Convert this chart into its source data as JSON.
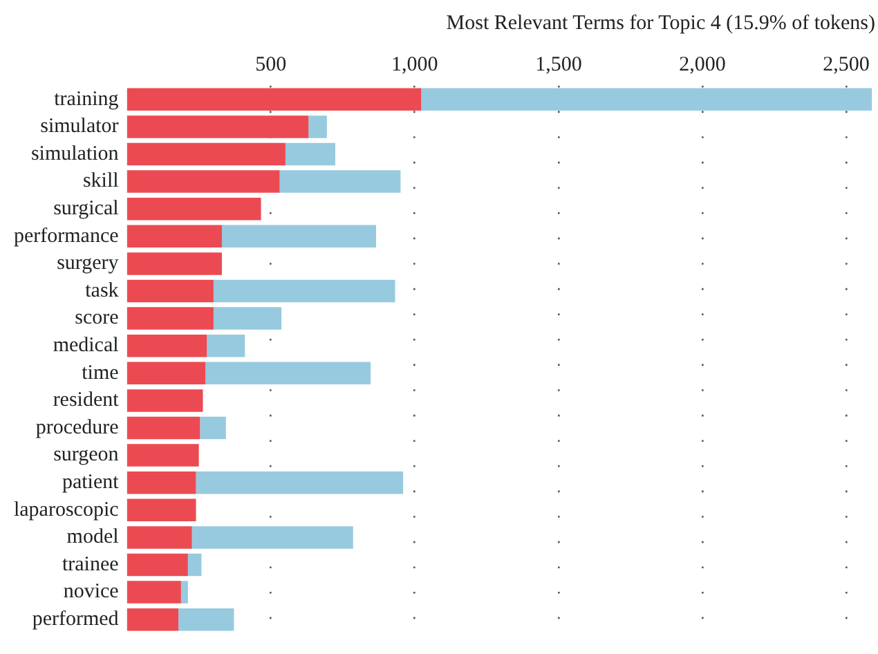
{
  "chart_data": {
    "type": "bar",
    "orientation": "horizontal",
    "title": "Most Relevant Terms for Topic 4 (15.9% of tokens)",
    "categories": [
      "training",
      "simulator",
      "simulation",
      "skill",
      "surgical",
      "performance",
      "surgery",
      "task",
      "score",
      "medical",
      "time",
      "resident",
      "procedure",
      "surgeon",
      "patient",
      "laparoscopic",
      "model",
      "trainee",
      "novice",
      "performed"
    ],
    "series": [
      {
        "color": "#ec4a52",
        "values": [
          1023,
          631,
          551,
          531,
          466,
          330,
          330,
          301,
          301,
          278,
          273,
          264,
          254,
          250,
          240,
          240,
          226,
          212,
          188,
          179
        ]
      },
      {
        "color": "#97cadf",
        "values": [
          1566,
          64,
          173,
          420,
          0,
          536,
          0,
          631,
          236,
          132,
          574,
          0,
          90,
          0,
          720,
          0,
          560,
          47,
          24,
          193
        ]
      }
    ],
    "xlim": [
      0,
      2600
    ],
    "xticks": [
      {
        "value": 500,
        "label": "500"
      },
      {
        "value": 1000,
        "label": "1,000"
      },
      {
        "value": 1500,
        "label": "1,500"
      },
      {
        "value": 2000,
        "label": "2,000"
      },
      {
        "value": 2500,
        "label": "2,500"
      }
    ],
    "grid": "x",
    "legend": false,
    "stacked": true
  }
}
